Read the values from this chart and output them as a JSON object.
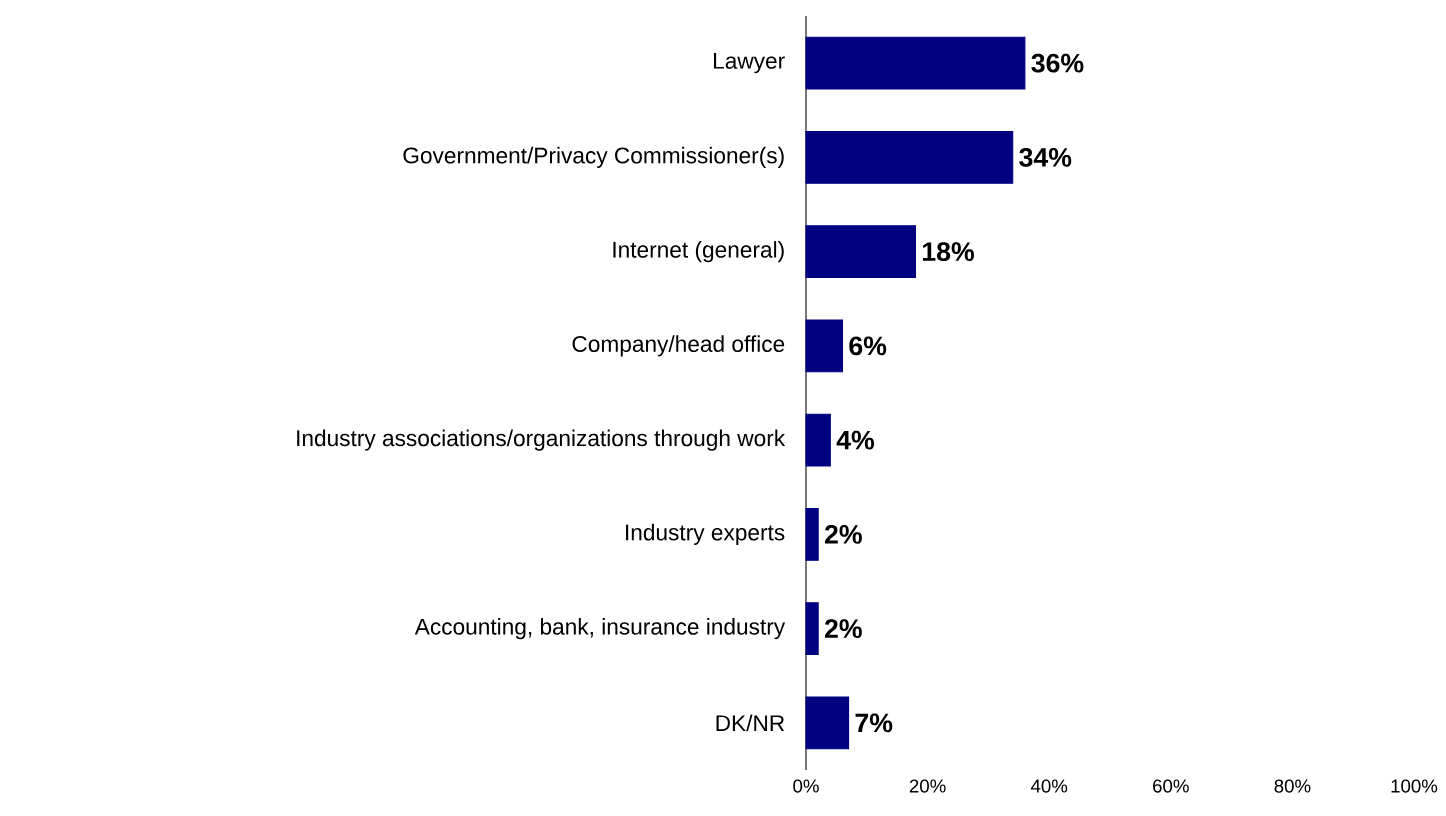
{
  "chart_data": {
    "type": "bar",
    "orientation": "horizontal",
    "categories": [
      "Lawyer",
      "Government/Privacy Commissioner(s)",
      "Internet (general)",
      "Company/head office",
      "Industry associations/organizations through work",
      "Industry experts",
      "Accounting, bank, insurance industry",
      "DK/NR"
    ],
    "values": [
      36,
      34,
      18,
      6,
      4,
      2,
      2,
      7
    ],
    "value_labels": [
      "36%",
      "34%",
      "18%",
      "6%",
      "4%",
      "2%",
      "2%",
      "7%"
    ],
    "color": "#000080",
    "xlim": [
      0,
      100
    ],
    "xticks": [
      {
        "value": 0,
        "label": "0%"
      },
      {
        "value": 20,
        "label": "20%"
      },
      {
        "value": 40,
        "label": "40%"
      },
      {
        "value": 60,
        "label": "60%"
      },
      {
        "value": 80,
        "label": "80%"
      },
      {
        "value": 100,
        "label": "100%"
      }
    ],
    "grid": false
  }
}
